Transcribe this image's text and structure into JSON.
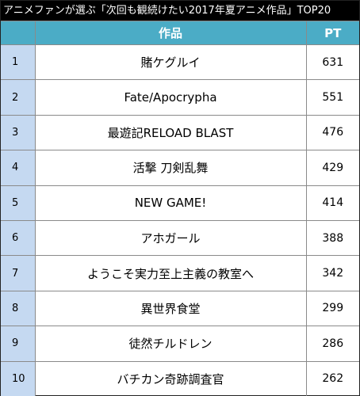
{
  "heading": "アニメファンが選ぶ「次回も観続けたい2017年夏アニメ作品」TOP20",
  "table": {
    "headers": {
      "rank": "",
      "title": "作品",
      "pt": "PT"
    },
    "rows": [
      {
        "rank": "1",
        "title": "賭ケグルイ",
        "pt": "631"
      },
      {
        "rank": "2",
        "title": "Fate/Apocrypha",
        "pt": "551"
      },
      {
        "rank": "3",
        "title": "最遊記RELOAD BLAST",
        "pt": "476"
      },
      {
        "rank": "4",
        "title": "活撃 刀剣乱舞",
        "pt": "429"
      },
      {
        "rank": "5",
        "title": "NEW GAME!",
        "pt": "414"
      },
      {
        "rank": "6",
        "title": "アホガール",
        "pt": "388"
      },
      {
        "rank": "7",
        "title": "ようこそ実力至上主義の教室へ",
        "pt": "342"
      },
      {
        "rank": "8",
        "title": "異世界食堂",
        "pt": "299"
      },
      {
        "rank": "9",
        "title": "徒然チルドレン",
        "pt": "286"
      },
      {
        "rank": "10",
        "title": "バチカン奇跡調査官",
        "pt": "262"
      }
    ]
  },
  "colors": {
    "title_bar_bg": "#000000",
    "header_bg": "#4bacc6",
    "rank_column_bg": "#c5d9f1"
  }
}
